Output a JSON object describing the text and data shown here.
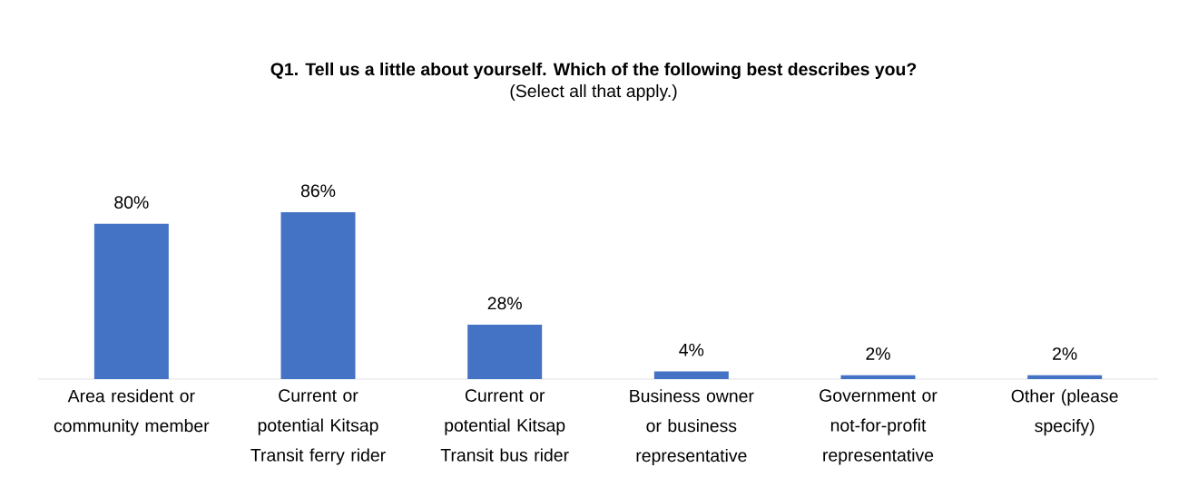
{
  "chart_data": {
    "type": "bar",
    "title": "Q1. Tell us a little about yourself. Which of the following best describes you?",
    "subtitle": "(Select all that apply.)",
    "categories": [
      "Area resident or community member",
      "Current or potential Kitsap Transit ferry rider",
      "Current or potential Kitsap Transit bus rider",
      "Business owner or business representative",
      "Government or not-for-profit representative",
      "Other (please specify)"
    ],
    "values": [
      80,
      86,
      28,
      4,
      2,
      2
    ],
    "value_labels": [
      "80%",
      "86%",
      "28%",
      "4%",
      "2%",
      "2%"
    ],
    "color": "#4472c4"
  }
}
